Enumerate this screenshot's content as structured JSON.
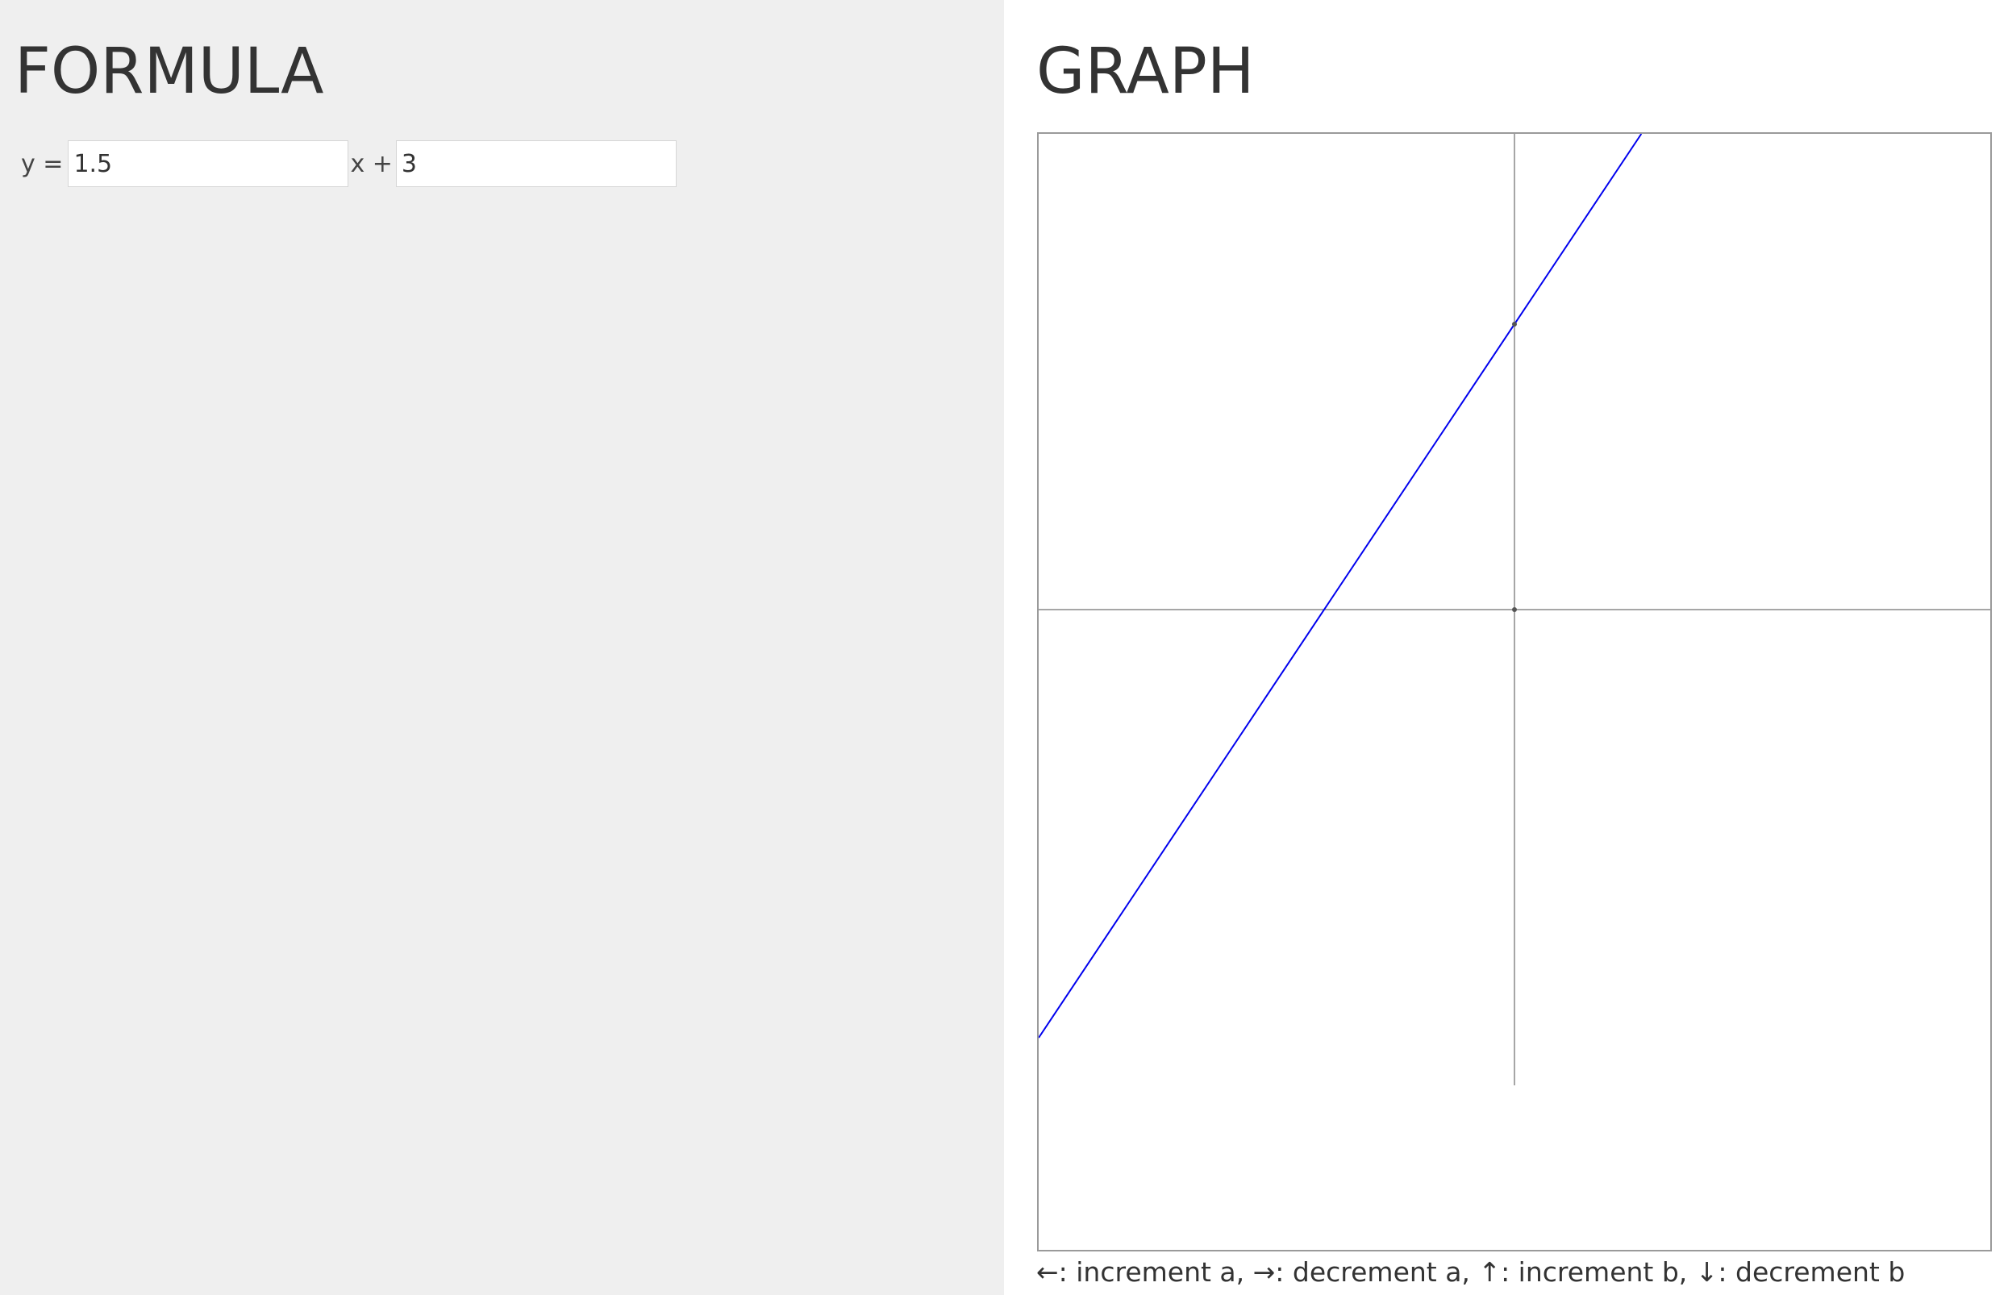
{
  "formula": {
    "heading": "FORMULA",
    "prefix": "y =",
    "slope_value": "1.5",
    "middle": "x +",
    "intercept_value": "3"
  },
  "graph": {
    "heading": "GRAPH",
    "instructions": "←: increment a, →: decrement a, ↑: increment b, ↓: decrement b"
  },
  "colors": {
    "left_background": "#efefef",
    "line_color": "#0000ee",
    "axis_color": "#888888"
  },
  "chart_data": {
    "type": "line",
    "slope": 1.5,
    "intercept": 3,
    "xlim": [
      -5,
      5
    ],
    "ylim": [
      -5,
      5
    ],
    "grid": false
  }
}
